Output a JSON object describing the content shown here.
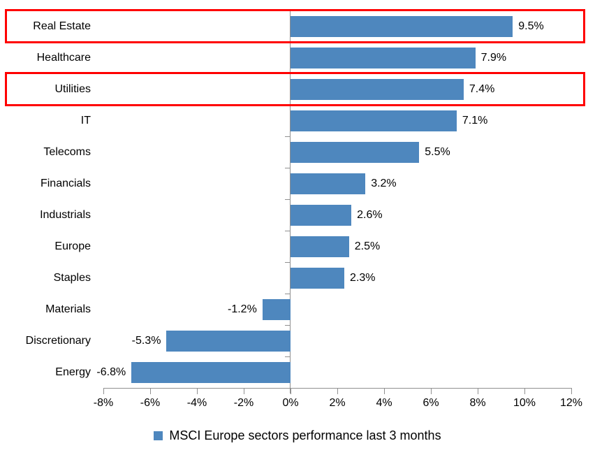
{
  "chart_data": {
    "type": "bar",
    "orientation": "horizontal",
    "title": "",
    "categories": [
      "Real Estate",
      "Healthcare",
      "Utilities",
      "IT",
      "Telecoms",
      "Financials",
      "Industrials",
      "Europe",
      "Staples",
      "Materials",
      "Discretionary",
      "Energy"
    ],
    "values": [
      9.5,
      7.9,
      7.4,
      7.1,
      5.5,
      3.2,
      2.6,
      2.5,
      2.3,
      -1.2,
      -5.3,
      -6.8
    ],
    "value_labels": [
      "9.5%",
      "7.9%",
      "7.4%",
      "7.1%",
      "5.5%",
      "3.2%",
      "2.6%",
      "2.5%",
      "2.3%",
      "-1.2%",
      "-5.3%",
      "-6.8%"
    ],
    "xlim": [
      -8,
      12
    ],
    "x_ticks": [
      -8,
      -6,
      -4,
      -2,
      0,
      2,
      4,
      6,
      8,
      10,
      12
    ],
    "x_tick_labels": [
      "-8%",
      "-6%",
      "-4%",
      "-2%",
      "0%",
      "2%",
      "4%",
      "6%",
      "8%",
      "10%",
      "12%"
    ],
    "grid": false,
    "legend": "MSCI Europe sectors performance last 3 months",
    "legend_position": "bottom",
    "highlighted_categories": [
      "Real Estate",
      "Utilities"
    ],
    "colors": {
      "bar": "#4E87BE",
      "highlight_box": "#FF0000",
      "axis": "#909090",
      "text": "#000000"
    }
  }
}
